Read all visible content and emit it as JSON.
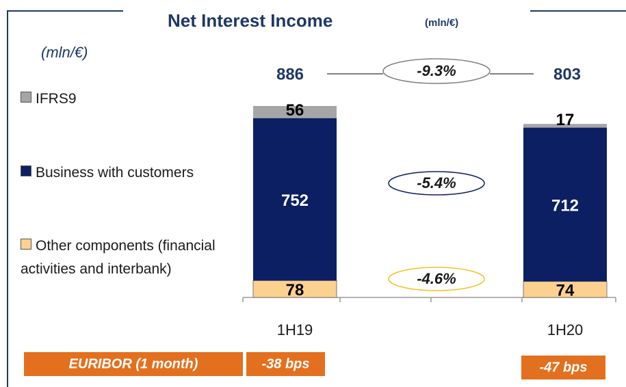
{
  "chart_data": {
    "type": "bar",
    "stacked": true,
    "title": "Net Interest Income",
    "title_unit": "(mln/€)",
    "unit_label": "(mln/€)",
    "categories": [
      "1H19",
      "1H20"
    ],
    "series": [
      {
        "name": "Other components (financial activities and interbank)",
        "color": "#fcd190",
        "label_color": "#000000",
        "change": "-4.6%",
        "change_color": "#f2c320",
        "values": [
          78,
          74
        ]
      },
      {
        "name": "Business with customers",
        "color": "#0d1f63",
        "label_color": "#ffffff",
        "change": "-5.4%",
        "change_color": "#0d1f63",
        "values": [
          752,
          712
        ]
      },
      {
        "name": "IFRS9",
        "color": "#a6a6a6",
        "label_color": "#000000",
        "values": [
          56,
          17
        ]
      }
    ],
    "totals": [
      886,
      803
    ],
    "total_change": "-9.3%",
    "total_change_color": "#808080",
    "rate_label": "EURIBOR (1 month)",
    "rate_changes": [
      "-38 bps",
      "-47 bps"
    ],
    "rate_color": "#e3701e"
  }
}
